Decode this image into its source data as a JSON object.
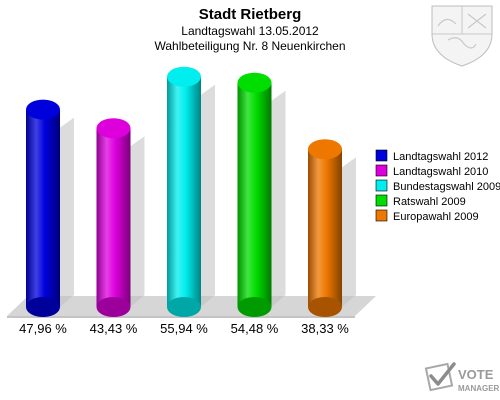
{
  "chart_data": {
    "type": "bar",
    "title": "Stadt Rietberg",
    "subtitle_line1": "Landtagswahl 13.05.2012",
    "subtitle_line2": "Wahlbeteiligung Nr. 8 Neuenkirchen",
    "categories": [
      "Landtagswahl 2012",
      "Landtagswahl 2010",
      "Bundestagswahl 2009",
      "Ratswahl 2009",
      "Europawahl 2009"
    ],
    "values": [
      47.96,
      43.43,
      55.94,
      54.48,
      38.33
    ],
    "value_labels": [
      "47,96 %",
      "43,43 %",
      "55,94 %",
      "54,48 %",
      "38,33 %"
    ],
    "colors": [
      "#0000dd",
      "#dd00dd",
      "#00eeee",
      "#00dd00",
      "#ee7700"
    ],
    "ylim": [
      0,
      60
    ],
    "legend_position": "right",
    "grid": false
  },
  "branding": {
    "logo_line1": "VOTE",
    "logo_line2": "MANAGER",
    "crest": "nrw-coat-of-arms-icon"
  }
}
